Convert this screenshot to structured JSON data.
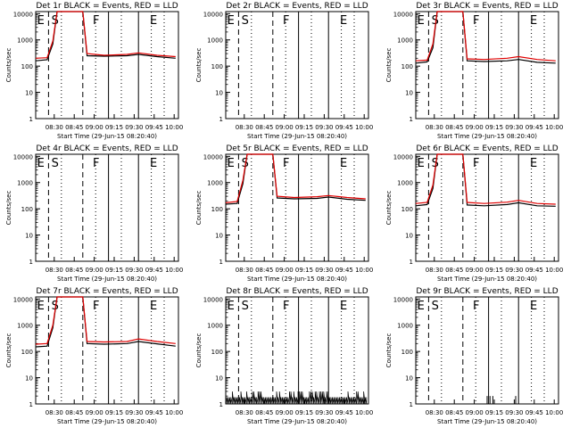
{
  "figure": {
    "ylabel": "Counts/sec",
    "xlabel": "Start Time (29-Jun-15 08:20:40)",
    "xticks": [
      "08:30",
      "08:45",
      "09:00",
      "09:15",
      "09:30",
      "09:45",
      "10:00"
    ],
    "yticks": [
      "1",
      "10",
      "100",
      "1000",
      "10000"
    ],
    "colors": {
      "events": "#000000",
      "lld": "#e00000"
    }
  },
  "chart_data": [
    {
      "type": "line",
      "title": "Det 1r BLACK = Events, RED = LLD",
      "markers": [
        "E",
        "S",
        "F",
        "E"
      ],
      "series": [
        {
          "name": "Events",
          "values": [
            [
              0,
              160
            ],
            [
              8,
              175
            ],
            [
              12,
              700
            ],
            [
              15,
              12000
            ],
            [
              33,
              12000
            ],
            [
              36,
              250
            ],
            [
              48,
              240
            ],
            [
              64,
              250
            ],
            [
              72,
              280
            ],
            [
              85,
              230
            ],
            [
              98,
              200
            ]
          ]
        },
        {
          "name": "LLD",
          "values": [
            [
              0,
              200
            ],
            [
              8,
              210
            ],
            [
              12,
              900
            ],
            [
              15,
              12000
            ],
            [
              33,
              12000
            ],
            [
              36,
              300
            ],
            [
              48,
              260
            ],
            [
              64,
              280
            ],
            [
              72,
              320
            ],
            [
              85,
              260
            ],
            [
              98,
              230
            ]
          ]
        }
      ]
    },
    {
      "type": "line",
      "title": "Det 2r BLACK = Events, RED = LLD",
      "markers": [
        "E",
        "S",
        "F",
        "E"
      ],
      "series": []
    },
    {
      "type": "line",
      "title": "Det 3r BLACK = Events, RED = LLD",
      "markers": [
        "E",
        "S",
        "F",
        "E"
      ],
      "series": [
        {
          "name": "Events",
          "values": [
            [
              0,
              130
            ],
            [
              8,
              145
            ],
            [
              12,
              500
            ],
            [
              15,
              12000
            ],
            [
              33,
              12000
            ],
            [
              36,
              160
            ],
            [
              48,
              150
            ],
            [
              64,
              160
            ],
            [
              72,
              180
            ],
            [
              85,
              140
            ],
            [
              98,
              130
            ]
          ]
        },
        {
          "name": "LLD",
          "values": [
            [
              0,
              160
            ],
            [
              8,
              170
            ],
            [
              12,
              700
            ],
            [
              15,
              12000
            ],
            [
              33,
              12000
            ],
            [
              36,
              190
            ],
            [
              48,
              180
            ],
            [
              64,
              200
            ],
            [
              72,
              230
            ],
            [
              85,
              180
            ],
            [
              98,
              160
            ]
          ]
        }
      ]
    },
    {
      "type": "line",
      "title": "Det 4r BLACK = Events, RED = LLD",
      "markers": [
        "E",
        "S",
        "F",
        "E"
      ],
      "series": []
    },
    {
      "type": "line",
      "title": "Det 5r BLACK = Events, RED = LLD",
      "markers": [
        "E",
        "S",
        "F",
        "E"
      ],
      "series": [
        {
          "name": "Events",
          "values": [
            [
              0,
              150
            ],
            [
              8,
              160
            ],
            [
              12,
              900
            ],
            [
              15,
              12000
            ],
            [
              33,
              12000
            ],
            [
              36,
              260
            ],
            [
              48,
              240
            ],
            [
              64,
              250
            ],
            [
              72,
              280
            ],
            [
              85,
              230
            ],
            [
              98,
              210
            ]
          ]
        },
        {
          "name": "LLD",
          "values": [
            [
              0,
              170
            ],
            [
              8,
              190
            ],
            [
              12,
              1200
            ],
            [
              15,
              12000
            ],
            [
              33,
              12000
            ],
            [
              36,
              300
            ],
            [
              48,
              270
            ],
            [
              64,
              290
            ],
            [
              72,
              320
            ],
            [
              85,
              270
            ],
            [
              98,
              240
            ]
          ]
        }
      ]
    },
    {
      "type": "line",
      "title": "Det 6r BLACK = Events, RED = LLD",
      "markers": [
        "E",
        "S",
        "F",
        "E"
      ],
      "series": [
        {
          "name": "Events",
          "values": [
            [
              0,
              130
            ],
            [
              8,
              145
            ],
            [
              12,
              600
            ],
            [
              15,
              12000
            ],
            [
              33,
              12000
            ],
            [
              36,
              140
            ],
            [
              48,
              130
            ],
            [
              64,
              145
            ],
            [
              72,
              170
            ],
            [
              85,
              130
            ],
            [
              98,
              125
            ]
          ]
        },
        {
          "name": "LLD",
          "values": [
            [
              0,
              160
            ],
            [
              8,
              175
            ],
            [
              12,
              800
            ],
            [
              15,
              12000
            ],
            [
              33,
              12000
            ],
            [
              36,
              175
            ],
            [
              48,
              160
            ],
            [
              64,
              180
            ],
            [
              72,
              210
            ],
            [
              85,
              160
            ],
            [
              98,
              150
            ]
          ]
        }
      ]
    },
    {
      "type": "line",
      "title": "Det 7r BLACK = Events, RED = LLD",
      "markers": [
        "E",
        "S",
        "F",
        "E"
      ],
      "series": [
        {
          "name": "Events",
          "values": [
            [
              0,
              150
            ],
            [
              8,
              160
            ],
            [
              12,
              800
            ],
            [
              15,
              12000
            ],
            [
              33,
              12000
            ],
            [
              36,
              200
            ],
            [
              48,
              190
            ],
            [
              64,
              200
            ],
            [
              72,
              240
            ],
            [
              85,
              195
            ],
            [
              98,
              160
            ]
          ]
        },
        {
          "name": "LLD",
          "values": [
            [
              0,
              190
            ],
            [
              8,
              200
            ],
            [
              12,
              1000
            ],
            [
              15,
              12000
            ],
            [
              33,
              12000
            ],
            [
              36,
              240
            ],
            [
              48,
              230
            ],
            [
              64,
              240
            ],
            [
              72,
              300
            ],
            [
              85,
              240
            ],
            [
              98,
              200
            ]
          ]
        }
      ]
    },
    {
      "type": "line",
      "title": "Det 8r BLACK = Events, RED = LLD",
      "markers": [
        "E",
        "S",
        "F",
        "E"
      ],
      "series": [
        {
          "name": "Events",
          "noise": true,
          "values": [
            [
              0,
              1.8
            ],
            [
              98,
              1.8
            ]
          ]
        }
      ]
    },
    {
      "type": "line",
      "title": "Det 9r BLACK = Events, RED = LLD",
      "markers": [
        "E",
        "S",
        "F",
        "E"
      ],
      "series": [
        {
          "name": "Events",
          "spikes": true,
          "values": [
            [
              50,
              2
            ],
            [
              52,
              2
            ],
            [
              54,
              2
            ],
            [
              70,
              2
            ]
          ]
        }
      ]
    }
  ]
}
